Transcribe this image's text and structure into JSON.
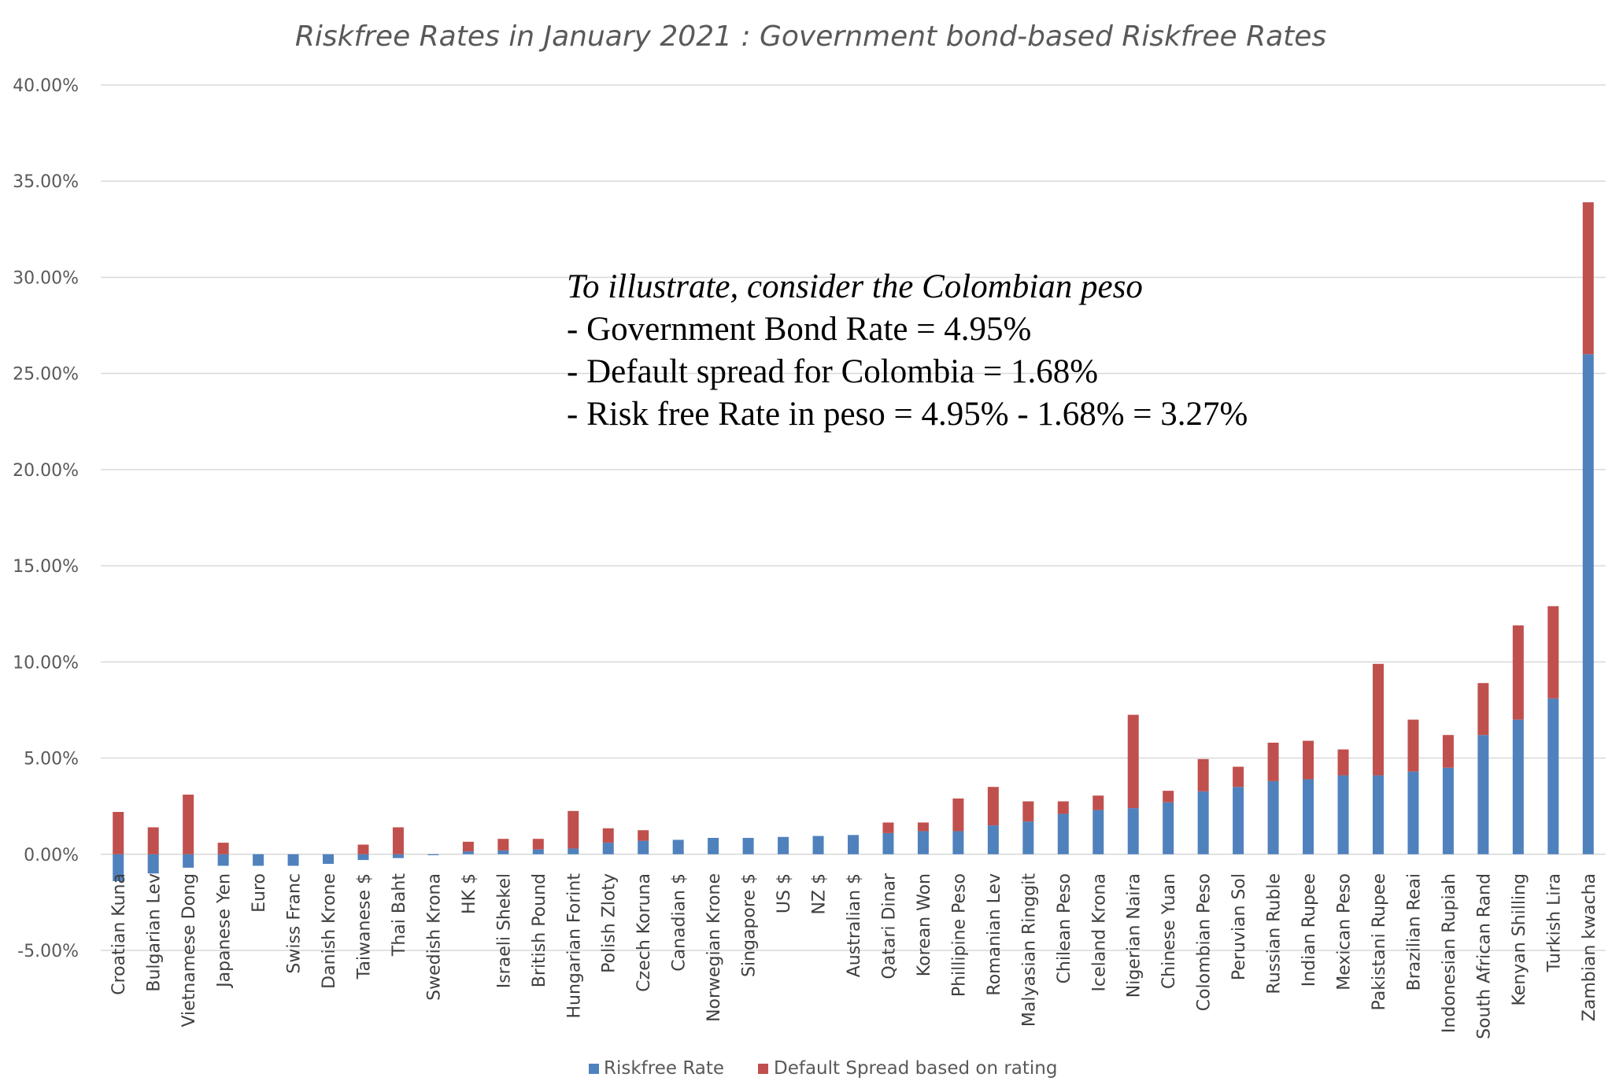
{
  "colors": {
    "riskfree": "#4f81bd",
    "spread": "#c0504d"
  },
  "annotation": {
    "line1": "To illustrate, consider the Colombian peso",
    "line2": "- Government Bond Rate = 4.95%",
    "line3": "- Default spread for Colombia = 1.68%",
    "line4": "- Risk free Rate in peso = 4.95% - 1.68% = 3.27%"
  },
  "chart_data": {
    "type": "bar",
    "stacked": true,
    "title": "Riskfree Rates in January 2021 : Government bond-based Riskfree Rates",
    "xlabel": "",
    "ylabel": "",
    "ylim": [
      -5,
      40
    ],
    "yticks": [
      "-5.00%",
      "0.00%",
      "5.00%",
      "10.00%",
      "15.00%",
      "20.00%",
      "25.00%",
      "30.00%",
      "35.00%",
      "40.00%"
    ],
    "grid": true,
    "legend_position": "bottom",
    "categories": [
      "Croatian Kuna",
      "Bulgarian Lev",
      "Vietnamese Dong",
      "Japanese Yen",
      "Euro",
      "Swiss Franc",
      "Danish Krone",
      "Taiwanese $",
      "Thai Baht",
      "Swedish Krona",
      "HK $",
      "Israeli Shekel",
      "British Pound",
      "Hungarian Forint",
      "Polish Zloty",
      "Czech Koruna",
      "Canadian $",
      "Norwegian Krone",
      "Singapore $",
      "US $",
      "NZ $",
      "Australian $",
      "Qatari Dinar",
      "Korean Won",
      "Phillipine Peso",
      "Romanian Lev",
      "Malyasian Ringgit",
      "Chilean Peso",
      "Iceland Krona",
      "Nigerian Naira",
      "Chinese Yuan",
      "Colombian Peso",
      "Peruvian Sol",
      "Russian Ruble",
      "Indian Rupee",
      "Mexican Peso",
      "Pakistani Rupee",
      "Brazilian Reai",
      "Indonesian Rupiah",
      "South African Rand",
      "Kenyan Shilling",
      "Turkish Lira",
      "Zambian kwacha"
    ],
    "series": [
      {
        "name": "Riskfree Rate",
        "values": [
          -1.4,
          -1.0,
          -0.7,
          -0.6,
          -0.6,
          -0.6,
          -0.5,
          -0.3,
          -0.2,
          -0.05,
          0.15,
          0.2,
          0.25,
          0.3,
          0.6,
          0.7,
          0.75,
          0.85,
          0.85,
          0.9,
          0.95,
          1.0,
          1.1,
          1.2,
          1.2,
          1.5,
          1.7,
          2.1,
          2.3,
          2.4,
          2.7,
          3.27,
          3.5,
          3.8,
          3.9,
          4.1,
          4.1,
          4.3,
          4.5,
          6.2,
          7.0,
          8.1,
          26.0
        ]
      },
      {
        "name": "Default Spread based on rating",
        "values": [
          2.2,
          1.4,
          3.1,
          0.6,
          0,
          0,
          0,
          0.5,
          1.4,
          0,
          0.5,
          0.6,
          0.55,
          1.95,
          0.75,
          0.55,
          0,
          0,
          0,
          0,
          0,
          0,
          0.55,
          0.45,
          1.7,
          2.0,
          1.05,
          0.65,
          0.75,
          4.85,
          0.6,
          1.68,
          1.05,
          2.0,
          2.0,
          1.35,
          5.8,
          2.7,
          1.7,
          2.7,
          4.9,
          4.8,
          7.9
        ]
      }
    ]
  }
}
